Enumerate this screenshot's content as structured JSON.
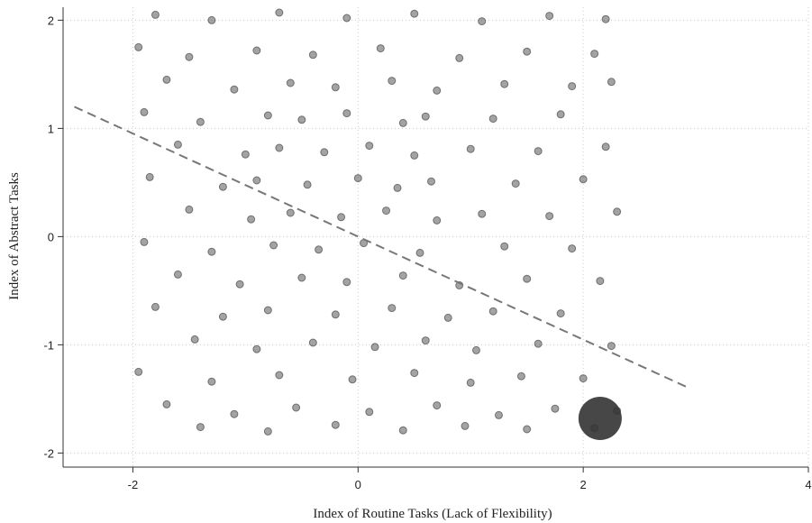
{
  "chart_data": {
    "type": "scatter",
    "x_label": "Index of Routine Tasks (Lack of Flexibility)",
    "y_label": "Index of Abstract Tasks",
    "xlim": [
      -2.62,
      4.0
    ],
    "ylim": [
      -2.13,
      2.12
    ],
    "xticks": [
      -2,
      0,
      2,
      4
    ],
    "yticks": [
      -2,
      -1,
      0,
      1,
      2
    ],
    "grid": true,
    "color": "#333333",
    "points": {
      "x": [
        -1.8,
        -1.3,
        -0.7,
        -0.1,
        0.5,
        1.1,
        1.7,
        2.2,
        -1.95,
        -1.5,
        -0.9,
        -0.4,
        0.2,
        0.9,
        1.5,
        2.1,
        -1.7,
        -1.1,
        -0.6,
        -0.2,
        0.3,
        0.7,
        1.3,
        1.9,
        2.25,
        -1.9,
        -1.4,
        -0.8,
        -0.5,
        -0.1,
        0.4,
        0.6,
        1.2,
        1.8,
        -1.6,
        -1.0,
        -0.7,
        -0.3,
        0.1,
        0.5,
        1.0,
        1.6,
        2.2,
        -1.85,
        -1.2,
        -0.9,
        -0.45,
        0,
        0.35,
        0.65,
        1.4,
        2.0,
        -1.5,
        -0.95,
        -0.6,
        -0.15,
        0.25,
        0.7,
        1.1,
        1.7,
        2.3,
        -1.9,
        -1.3,
        -0.75,
        -0.35,
        0.05,
        0.55,
        1.3,
        1.9,
        -1.6,
        -1.05,
        -0.5,
        -0.1,
        0.4,
        0.9,
        1.5,
        2.15,
        -1.8,
        -1.2,
        -0.8,
        -0.2,
        0.3,
        0.8,
        1.2,
        1.8,
        -1.45,
        -0.9,
        -0.4,
        0.15,
        0.6,
        1.05,
        1.6,
        2.25,
        -1.95,
        -1.3,
        -0.7,
        -0.05,
        0.5,
        1.0,
        1.45,
        2.0,
        -1.7,
        -1.1,
        -0.55,
        0.1,
        0.7,
        1.25,
        1.75,
        2.3,
        -1.4,
        -0.8,
        -0.2,
        0.4,
        0.95,
        1.5,
        2.1
      ],
      "y": [
        2.05,
        2.0,
        2.07,
        2.02,
        2.06,
        1.99,
        2.04,
        2.01,
        1.75,
        1.66,
        1.72,
        1.68,
        1.74,
        1.65,
        1.71,
        1.69,
        1.45,
        1.36,
        1.42,
        1.38,
        1.44,
        1.35,
        1.41,
        1.39,
        1.43,
        1.15,
        1.06,
        1.12,
        1.08,
        1.14,
        1.05,
        1.11,
        1.09,
        1.13,
        0.85,
        0.76,
        0.82,
        0.78,
        0.84,
        0.75,
        0.81,
        0.79,
        0.83,
        0.55,
        0.46,
        0.52,
        0.48,
        0.54,
        0.45,
        0.51,
        0.49,
        0.53,
        0.25,
        0.16,
        0.22,
        0.18,
        0.24,
        0.15,
        0.21,
        0.19,
        0.23,
        -0.05,
        -0.14,
        -0.08,
        -0.12,
        -0.06,
        -0.15,
        -0.09,
        -0.11,
        -0.35,
        -0.44,
        -0.38,
        -0.42,
        -0.36,
        -0.45,
        -0.39,
        -0.41,
        -0.65,
        -0.74,
        -0.68,
        -0.72,
        -0.66,
        -0.75,
        -0.69,
        -0.71,
        -0.95,
        -1.04,
        -0.98,
        -1.02,
        -0.96,
        -1.05,
        -0.99,
        -1.01,
        -1.25,
        -1.34,
        -1.28,
        -1.32,
        -1.26,
        -1.35,
        -1.29,
        -1.31,
        -1.55,
        -1.64,
        -1.58,
        -1.62,
        -1.56,
        -1.65,
        -1.59,
        -1.61,
        -1.76,
        -1.8,
        -1.74,
        -1.79,
        -1.75,
        -1.78,
        -1.77
      ]
    },
    "highlight": {
      "x": [
        2.15
      ],
      "y": [
        -1.68
      ]
    },
    "fit_line": {
      "x": [
        -2.52,
        2.92
      ],
      "y": [
        1.2,
        -1.39
      ]
    }
  }
}
